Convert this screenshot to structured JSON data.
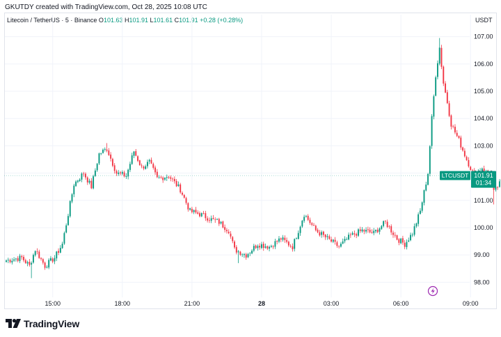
{
  "caption": "GKUTDY created with TradingView.com, Oct 28, 2025 10:08 UTC",
  "legend": {
    "symbol": "Litecoin / TetherUS · 5 · Binance",
    "o_label": "O",
    "o": "101.63",
    "h_label": "H",
    "h": "101.91",
    "l_label": "L",
    "l": "101.61",
    "c_label": "C",
    "c": "101.91",
    "change": "+0.28 (+0.28%)"
  },
  "currency": "USDT",
  "price_tag": {
    "symbol": "LTCUSDT",
    "price": "101.91",
    "countdown": "01:34"
  },
  "brand": "TradingView",
  "colors": {
    "up": "#089981",
    "down": "#f23645",
    "grid": "#f0f3fa",
    "last_line": "#089981"
  },
  "icons": {
    "replay": "lightning-bolt-icon",
    "logo": "tradingview-logo-icon"
  },
  "chart_data": {
    "type": "candlestick",
    "ylim": [
      97.55,
      107.45
    ],
    "y_ticks": [
      98,
      99,
      100,
      101,
      102,
      103,
      104,
      105,
      106,
      107
    ],
    "y_tick_labels": [
      "98.00",
      "99.00",
      "100.00",
      "101.00",
      "102.00",
      "103.00",
      "104.00",
      "105.00",
      "106.00",
      "107.00"
    ],
    "x_ticks": [
      {
        "label": "15:00",
        "bold": false
      },
      {
        "label": "18:00",
        "bold": false
      },
      {
        "label": "21:00",
        "bold": false
      },
      {
        "label": "28",
        "bold": true
      },
      {
        "label": "03:00",
        "bold": false
      },
      {
        "label": "06:00",
        "bold": false
      },
      {
        "label": "09:00",
        "bold": false
      }
    ],
    "x_tick_index": [
      24,
      60,
      96,
      132,
      168,
      204,
      240
    ],
    "last_price": 101.91,
    "close_path": [
      [
        0,
        98.8
      ],
      [
        8,
        98.9
      ],
      [
        12,
        98.6
      ],
      [
        15,
        99.2
      ],
      [
        20,
        98.6
      ],
      [
        25,
        98.9
      ],
      [
        29,
        99.4
      ],
      [
        32,
        100.5
      ],
      [
        35,
        101.6
      ],
      [
        40,
        102.0
      ],
      [
        44,
        101.5
      ],
      [
        48,
        102.7
      ],
      [
        52,
        102.9
      ],
      [
        57,
        102.0
      ],
      [
        62,
        101.9
      ],
      [
        66,
        102.8
      ],
      [
        70,
        102.2
      ],
      [
        74,
        102.4
      ],
      [
        78,
        101.8
      ],
      [
        84,
        101.9
      ],
      [
        90,
        101.4
      ],
      [
        95,
        100.6
      ],
      [
        100,
        100.5
      ],
      [
        106,
        100.3
      ],
      [
        110,
        100.2
      ],
      [
        115,
        99.9
      ],
      [
        118,
        99.2
      ],
      [
        124,
        99.0
      ],
      [
        130,
        99.4
      ],
      [
        136,
        99.3
      ],
      [
        142,
        99.6
      ],
      [
        148,
        99.3
      ],
      [
        154,
        100.5
      ],
      [
        160,
        99.9
      ],
      [
        166,
        99.6
      ],
      [
        172,
        99.3
      ],
      [
        178,
        99.7
      ],
      [
        184,
        99.9
      ],
      [
        190,
        99.8
      ],
      [
        196,
        100.2
      ],
      [
        202,
        99.6
      ],
      [
        206,
        99.4
      ],
      [
        210,
        99.8
      ],
      [
        214,
        100.6
      ],
      [
        218,
        102.0
      ],
      [
        220,
        104.0
      ],
      [
        222,
        105.6
      ],
      [
        224,
        106.6
      ],
      [
        226,
        105.3
      ],
      [
        228,
        104.6
      ],
      [
        230,
        103.8
      ],
      [
        234,
        103.2
      ],
      [
        238,
        102.5
      ],
      [
        242,
        101.9
      ],
      [
        246,
        102.2
      ],
      [
        250,
        101.8
      ],
      [
        252,
        101.3
      ],
      [
        256,
        101.7
      ],
      [
        259,
        101.91
      ]
    ],
    "wick_spikes": [
      {
        "i": 224,
        "high": 106.95
      },
      {
        "i": 225,
        "high": 106.7
      },
      {
        "i": 120,
        "low": 98.7
      },
      {
        "i": 252,
        "low": 100.85
      },
      {
        "i": 13,
        "low": 98.15
      },
      {
        "i": 52,
        "high": 103.1
      }
    ]
  }
}
